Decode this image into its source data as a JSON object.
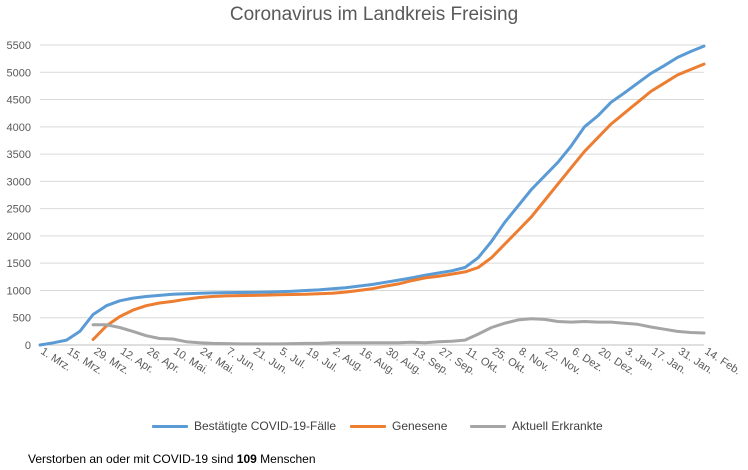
{
  "title": "Coronavirus im Landkreis Freising",
  "footnote": {
    "prefix": "Verstorben an oder mit COVID-19 sind",
    "count": "109",
    "suffix": "Menschen"
  },
  "chart_data": {
    "type": "line",
    "title": "Coronavirus im Landkreis Freising",
    "xlabel": "",
    "ylabel": "",
    "ylim": [
      0,
      5500
    ],
    "yticks": [
      0,
      500,
      1000,
      1500,
      2000,
      2500,
      3000,
      3500,
      4000,
      4500,
      5000,
      5500
    ],
    "grid": true,
    "legend_position": "bottom",
    "x_tick_labels": [
      "1. Mrz.",
      "15. Mrz.",
      "29. Mrz.",
      "12. Apr.",
      "26. Apr.",
      "10. Mai.",
      "24. Mai.",
      "7. Jun.",
      "21. Jun.",
      "5. Jul.",
      "19. Jul.",
      "2. Aug.",
      "16. Aug.",
      "30. Aug.",
      "13. Sep.",
      "27. Sep.",
      "11. Okt.",
      "25. Okt.",
      "8. Nov.",
      "22. Nov.",
      "6. Dez.",
      "20. Dez.",
      "3. Jan.",
      "17. Jan.",
      "31. Jan.",
      "14. Feb."
    ],
    "x": [
      "2020-03-01",
      "2020-03-08",
      "2020-03-15",
      "2020-03-22",
      "2020-03-29",
      "2020-04-05",
      "2020-04-12",
      "2020-04-19",
      "2020-04-26",
      "2020-05-03",
      "2020-05-10",
      "2020-05-17",
      "2020-05-24",
      "2020-05-31",
      "2020-06-07",
      "2020-06-14",
      "2020-06-21",
      "2020-06-28",
      "2020-07-05",
      "2020-07-12",
      "2020-07-19",
      "2020-07-26",
      "2020-08-02",
      "2020-08-09",
      "2020-08-16",
      "2020-08-23",
      "2020-08-30",
      "2020-09-06",
      "2020-09-13",
      "2020-09-20",
      "2020-09-27",
      "2020-10-04",
      "2020-10-11",
      "2020-10-18",
      "2020-10-25",
      "2020-11-01",
      "2020-11-08",
      "2020-11-15",
      "2020-11-22",
      "2020-11-29",
      "2020-12-06",
      "2020-12-13",
      "2020-12-20",
      "2020-12-27",
      "2021-01-03",
      "2021-01-10",
      "2021-01-17",
      "2021-01-24",
      "2021-01-31",
      "2021-02-07",
      "2021-02-14"
    ],
    "series": [
      {
        "name": "Bestätigte COVID-19-Fälle",
        "color": "#5B9BD5",
        "values": [
          0,
          40,
          90,
          250,
          560,
          720,
          810,
          860,
          890,
          910,
          930,
          940,
          950,
          955,
          960,
          962,
          965,
          970,
          975,
          985,
          1000,
          1010,
          1030,
          1050,
          1080,
          1110,
          1150,
          1190,
          1230,
          1280,
          1320,
          1360,
          1420,
          1600,
          1900,
          2250,
          2550,
          2850,
          3100,
          3350,
          3650,
          4000,
          4200,
          4450,
          4620,
          4800,
          4980,
          5120,
          5270,
          5380,
          5480
        ]
      },
      {
        "name": "Genesene",
        "color": "#ED7D31",
        "values": [
          null,
          null,
          null,
          null,
          100,
          350,
          520,
          640,
          720,
          770,
          800,
          840,
          870,
          890,
          900,
          905,
          910,
          915,
          920,
          925,
          930,
          940,
          950,
          970,
          1000,
          1030,
          1080,
          1120,
          1180,
          1230,
          1260,
          1300,
          1340,
          1420,
          1600,
          1850,
          2100,
          2350,
          2650,
          2950,
          3250,
          3550,
          3800,
          4050,
          4250,
          4450,
          4650,
          4800,
          4950,
          5050,
          5150
        ]
      },
      {
        "name": "Aktuell Erkrankte",
        "color": "#A5A5A5",
        "values": [
          null,
          null,
          null,
          null,
          370,
          370,
          320,
          250,
          170,
          120,
          110,
          60,
          40,
          30,
          25,
          20,
          20,
          20,
          20,
          25,
          30,
          30,
          40,
          40,
          40,
          40,
          40,
          40,
          50,
          40,
          60,
          70,
          90,
          200,
          320,
          400,
          460,
          480,
          470,
          430,
          420,
          430,
          420,
          420,
          400,
          380,
          330,
          290,
          250,
          230,
          220
        ]
      }
    ]
  }
}
